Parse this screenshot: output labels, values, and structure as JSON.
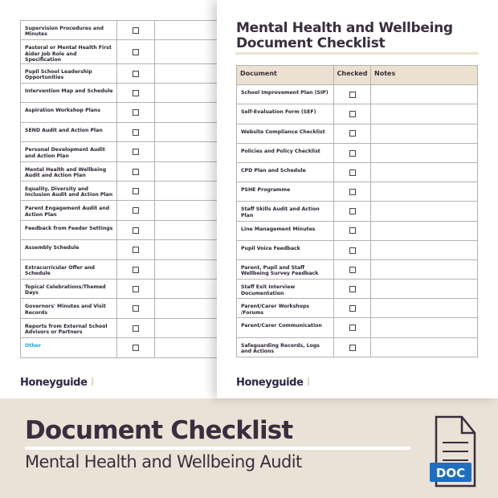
{
  "left_page": {
    "rows": [
      "Supervision Procedures and Minutes",
      "Pastoral or Mental Health First Aider Job Role and Specification",
      "Pupil School Leadership Opportunities",
      "Intervention Map and Schedule",
      "Aspiration Workshop Plans",
      "SEND Audit and Action Plan",
      "Personal Development Audit and Action Plan",
      "Mental Health and Wellbeing Audit and Action Plan",
      "Equality, Diversity and Inclusion Audit and Action Plan",
      "Parent Engagement Audit and Action Plan",
      "Feedback from Feeder Settings",
      "Assembly Schedule",
      "Extracurricular Offer and Schedule",
      "Topical Celebrations/Themed Days",
      "Governors' Minutes and Visit Records",
      "Reports from External School Advisors or Partners",
      "Other"
    ],
    "logo": "Honeyguide"
  },
  "right_page": {
    "title_line1": "Mental Health and Wellbeing",
    "title_line2": "Document Checklist",
    "headers": {
      "document": "Document",
      "checked": "Checked",
      "notes": "Notes"
    },
    "rows": [
      "School Improvement Plan (SIP)",
      "Self-Evaluation Form (SEF)",
      "Website Compliance Checklist",
      "Policies and Policy Checklist",
      "CPD Plan and Schedule",
      "PSHE Programme",
      "Staff Skills Audit and Action Plan",
      "Line Management Minutes",
      "Pupil Voice Feedback",
      "Parent, Pupil and Staff Wellbeing Survey Feedback",
      "Staff Exit Interview Documentation",
      "Parent/Carer Workshops /Forums",
      "Parent/Carer Communication",
      "Safeguarding Records, Logs and Actions"
    ],
    "logo": "Honeyguide"
  },
  "banner": {
    "title": "Document Checklist",
    "subtitle": "Mental Health and Wellbeing Audit",
    "icon": "doc-file-icon",
    "icon_label": "DOC",
    "icon_color": "#1e6fc0",
    "background": "#ebe2d7"
  },
  "colors": {
    "header_bg": "#ece0d0",
    "other_link": "#1aa6c9",
    "text": "#3a2e3e"
  }
}
